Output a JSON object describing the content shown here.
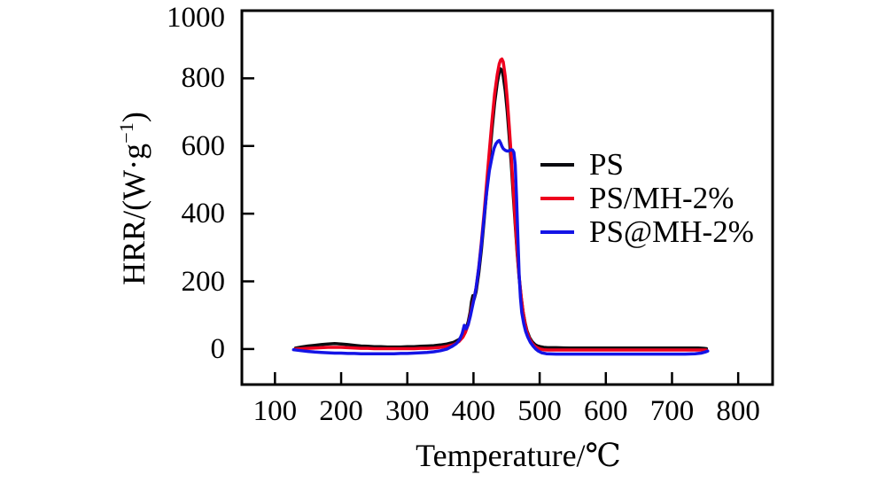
{
  "figure": {
    "background": "#ffffff"
  },
  "chart_data": {
    "type": "line",
    "title": "",
    "xlabel": "Temperature/℃",
    "ylabel": "HRR/(W·g⁻¹)",
    "ylabel_parts": {
      "main": "HRR/(W·g",
      "sup": "−1",
      "end": ")"
    },
    "xlim": [
      50,
      852
    ],
    "ylim": [
      -105,
      1000
    ],
    "xticks": [
      100,
      200,
      300,
      400,
      500,
      600,
      700,
      800
    ],
    "yticks": [
      0,
      200,
      400,
      600,
      800,
      1000
    ],
    "ytick_marks": [
      0,
      200,
      400,
      600,
      800
    ],
    "grid": false,
    "legend_position": "inside-middle-right",
    "axis_color": "#000000",
    "series": [
      {
        "name": "PS",
        "color": "#0a0a0f",
        "peak": {
          "temperature_c": 441,
          "hrr": 828
        },
        "points": [
          [
            131,
            3
          ],
          [
            140,
            6
          ],
          [
            150,
            9
          ],
          [
            160,
            11
          ],
          [
            170,
            13
          ],
          [
            180,
            15
          ],
          [
            190,
            16
          ],
          [
            200,
            15
          ],
          [
            210,
            13
          ],
          [
            220,
            11
          ],
          [
            230,
            9
          ],
          [
            240,
            8
          ],
          [
            250,
            7
          ],
          [
            260,
            7
          ],
          [
            270,
            6
          ],
          [
            280,
            6
          ],
          [
            290,
            6
          ],
          [
            300,
            7
          ],
          [
            310,
            7
          ],
          [
            320,
            8
          ],
          [
            330,
            9
          ],
          [
            340,
            10
          ],
          [
            350,
            12
          ],
          [
            360,
            15
          ],
          [
            370,
            20
          ],
          [
            378,
            28
          ],
          [
            384,
            40
          ],
          [
            388,
            55
          ],
          [
            392,
            80
          ],
          [
            395,
            110
          ],
          [
            397,
            140
          ],
          [
            399,
            158
          ],
          [
            401,
            148
          ],
          [
            404,
            170
          ],
          [
            408,
            225
          ],
          [
            412,
            295
          ],
          [
            416,
            380
          ],
          [
            420,
            468
          ],
          [
            424,
            558
          ],
          [
            428,
            648
          ],
          [
            432,
            728
          ],
          [
            436,
            788
          ],
          [
            439,
            818
          ],
          [
            441,
            828
          ],
          [
            443,
            824
          ],
          [
            445,
            806
          ],
          [
            448,
            762
          ],
          [
            451,
            702
          ],
          [
            454,
            628
          ],
          [
            457,
            548
          ],
          [
            460,
            458
          ],
          [
            463,
            368
          ],
          [
            466,
            283
          ],
          [
            469,
            212
          ],
          [
            472,
            154
          ],
          [
            475,
            110
          ],
          [
            478,
            77
          ],
          [
            481,
            53
          ],
          [
            485,
            33
          ],
          [
            489,
            21
          ],
          [
            493,
            13
          ],
          [
            497,
            9
          ],
          [
            501,
            7
          ],
          [
            506,
            5
          ],
          [
            512,
            4
          ],
          [
            525,
            4
          ],
          [
            545,
            3
          ],
          [
            565,
            3
          ],
          [
            585,
            3
          ],
          [
            605,
            3
          ],
          [
            625,
            3
          ],
          [
            645,
            3
          ],
          [
            665,
            3
          ],
          [
            685,
            3
          ],
          [
            705,
            3
          ],
          [
            725,
            3
          ],
          [
            740,
            3
          ],
          [
            748,
            2
          ],
          [
            752,
            1
          ]
        ]
      },
      {
        "name": "PS/MH-2%",
        "color": "#ee001e",
        "peak": {
          "temperature_c": 443,
          "hrr": 857
        },
        "points": [
          [
            131,
            0
          ],
          [
            140,
            1
          ],
          [
            150,
            2
          ],
          [
            160,
            3
          ],
          [
            170,
            4
          ],
          [
            180,
            5
          ],
          [
            190,
            5
          ],
          [
            200,
            5
          ],
          [
            210,
            4
          ],
          [
            220,
            3
          ],
          [
            230,
            2
          ],
          [
            240,
            2
          ],
          [
            250,
            1
          ],
          [
            260,
            1
          ],
          [
            270,
            1
          ],
          [
            280,
            1
          ],
          [
            290,
            1
          ],
          [
            300,
            1
          ],
          [
            310,
            1
          ],
          [
            320,
            2
          ],
          [
            330,
            2
          ],
          [
            340,
            3
          ],
          [
            350,
            5
          ],
          [
            360,
            8
          ],
          [
            370,
            13
          ],
          [
            378,
            22
          ],
          [
            384,
            35
          ],
          [
            388,
            50
          ],
          [
            392,
            72
          ],
          [
            395,
            100
          ],
          [
            398,
            128
          ],
          [
            401,
            152
          ],
          [
            404,
            182
          ],
          [
            408,
            242
          ],
          [
            412,
            318
          ],
          [
            416,
            402
          ],
          [
            420,
            492
          ],
          [
            424,
            585
          ],
          [
            428,
            675
          ],
          [
            432,
            755
          ],
          [
            436,
            812
          ],
          [
            439,
            843
          ],
          [
            441,
            854
          ],
          [
            443,
            857
          ],
          [
            445,
            848
          ],
          [
            448,
            805
          ],
          [
            451,
            740
          ],
          [
            454,
            660
          ],
          [
            457,
            572
          ],
          [
            460,
            478
          ],
          [
            463,
            380
          ],
          [
            466,
            290
          ],
          [
            469,
            215
          ],
          [
            472,
            155
          ],
          [
            475,
            109
          ],
          [
            478,
            74
          ],
          [
            481,
            49
          ],
          [
            485,
            29
          ],
          [
            489,
            16
          ],
          [
            493,
            8
          ],
          [
            497,
            3
          ],
          [
            501,
            0
          ],
          [
            506,
            -2
          ],
          [
            512,
            -3
          ],
          [
            525,
            -3
          ],
          [
            545,
            -3
          ],
          [
            565,
            -3
          ],
          [
            585,
            -3
          ],
          [
            605,
            -3
          ],
          [
            625,
            -3
          ],
          [
            645,
            -3
          ],
          [
            665,
            -3
          ],
          [
            685,
            -3
          ],
          [
            705,
            -3
          ],
          [
            725,
            -3
          ],
          [
            740,
            -3
          ],
          [
            748,
            -3
          ],
          [
            752,
            -3
          ]
        ]
      },
      {
        "name": "PS@MH-2%",
        "color": "#1414e6",
        "peak": {
          "temperature_c": 439,
          "hrr": 616
        },
        "points": [
          [
            128,
            -2
          ],
          [
            140,
            -5
          ],
          [
            150,
            -7
          ],
          [
            160,
            -9
          ],
          [
            170,
            -10
          ],
          [
            180,
            -11
          ],
          [
            190,
            -12
          ],
          [
            200,
            -12
          ],
          [
            210,
            -13
          ],
          [
            220,
            -13
          ],
          [
            230,
            -14
          ],
          [
            240,
            -14
          ],
          [
            250,
            -14
          ],
          [
            260,
            -14
          ],
          [
            270,
            -14
          ],
          [
            280,
            -14
          ],
          [
            290,
            -13
          ],
          [
            300,
            -13
          ],
          [
            310,
            -12
          ],
          [
            320,
            -11
          ],
          [
            330,
            -10
          ],
          [
            340,
            -8
          ],
          [
            350,
            -5
          ],
          [
            360,
            0
          ],
          [
            368,
            8
          ],
          [
            374,
            16
          ],
          [
            379,
            28
          ],
          [
            383,
            46
          ],
          [
            386,
            70
          ],
          [
            389,
            60
          ],
          [
            392,
            72
          ],
          [
            395,
            95
          ],
          [
            398,
            122
          ],
          [
            401,
            150
          ],
          [
            404,
            182
          ],
          [
            408,
            240
          ],
          [
            412,
            310
          ],
          [
            416,
            390
          ],
          [
            420,
            463
          ],
          [
            424,
            527
          ],
          [
            428,
            567
          ],
          [
            431,
            593
          ],
          [
            434,
            607
          ],
          [
            437,
            614
          ],
          [
            439,
            616
          ],
          [
            441,
            609
          ],
          [
            443,
            599
          ],
          [
            445,
            592
          ],
          [
            448,
            587
          ],
          [
            451,
            585
          ],
          [
            454,
            586
          ],
          [
            457,
            589
          ],
          [
            459,
            588
          ],
          [
            461,
            581
          ],
          [
            463,
            545
          ],
          [
            465,
            448
          ],
          [
            467,
            330
          ],
          [
            469,
            222
          ],
          [
            471,
            152
          ],
          [
            473,
            108
          ],
          [
            476,
            74
          ],
          [
            479,
            51
          ],
          [
            482,
            35
          ],
          [
            486,
            20
          ],
          [
            490,
            9
          ],
          [
            494,
            0
          ],
          [
            498,
            -6
          ],
          [
            503,
            -11
          ],
          [
            510,
            -14
          ],
          [
            525,
            -15
          ],
          [
            545,
            -15
          ],
          [
            565,
            -15
          ],
          [
            585,
            -15
          ],
          [
            605,
            -15
          ],
          [
            625,
            -15
          ],
          [
            645,
            -15
          ],
          [
            665,
            -15
          ],
          [
            685,
            -15
          ],
          [
            705,
            -15
          ],
          [
            720,
            -15
          ],
          [
            735,
            -14
          ],
          [
            744,
            -12
          ],
          [
            750,
            -9
          ],
          [
            754,
            -6
          ]
        ]
      }
    ]
  }
}
